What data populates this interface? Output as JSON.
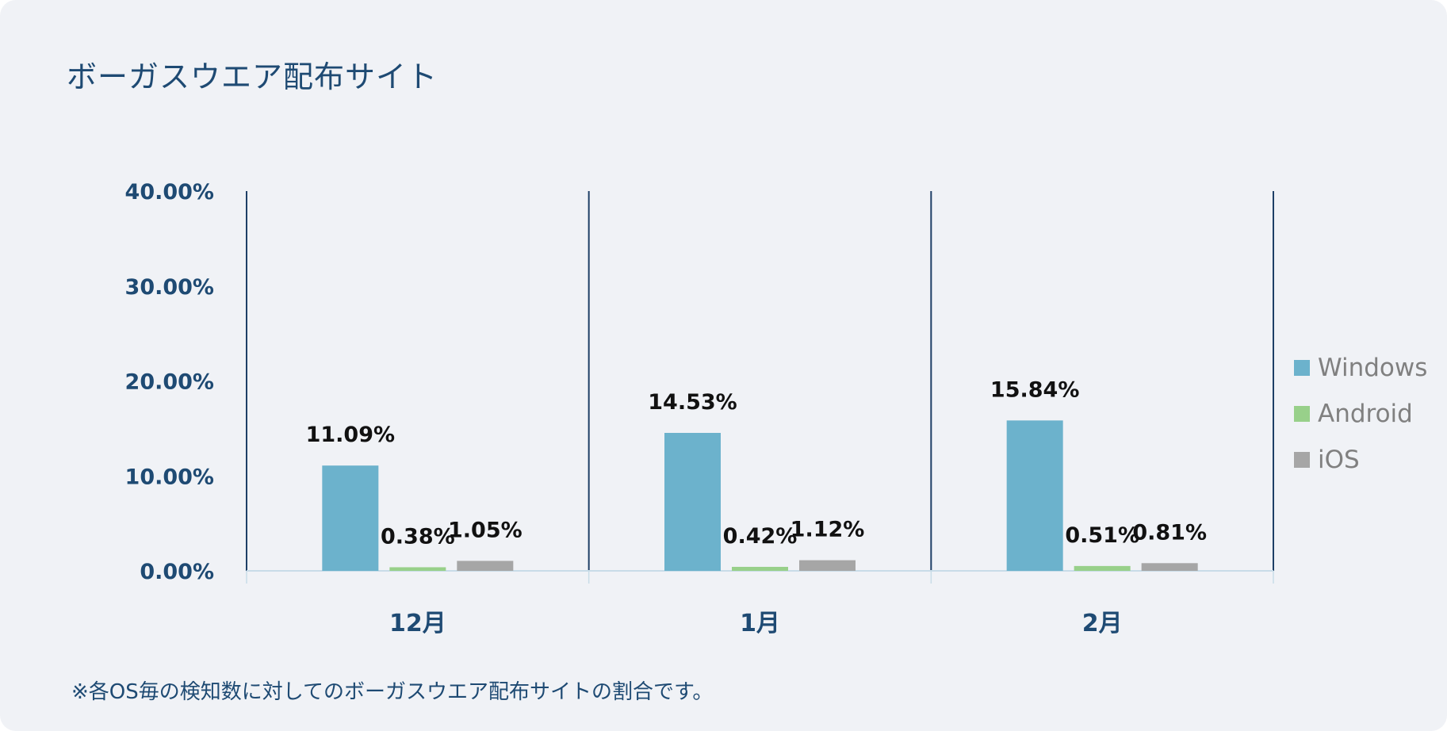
{
  "title": "ボーガスウエア配布サイト",
  "note": "※各OS毎の検知数に対してのボーガスウエア配布サイトの割合です。",
  "legend": [
    {
      "label": "Windows",
      "color": "#6cb2cc"
    },
    {
      "label": "Android",
      "color": "#98d08a"
    },
    {
      "label": "iOS",
      "color": "#a6a6a6"
    }
  ],
  "chart_data": {
    "type": "bar",
    "title": "ボーガスウエア配布サイト",
    "categories": [
      "12月",
      "1月",
      "2月"
    ],
    "series": [
      {
        "name": "Windows",
        "values": [
          11.09,
          14.53,
          15.84
        ],
        "labels": [
          "11.09%",
          "14.53%",
          "15.84%"
        ],
        "color": "#6cb2cc"
      },
      {
        "name": "Android",
        "values": [
          0.38,
          0.42,
          0.51
        ],
        "labels": [
          "0.38%",
          "0.42%",
          "0.51%"
        ],
        "color": "#98d08a"
      },
      {
        "name": "iOS",
        "values": [
          1.05,
          1.12,
          0.81
        ],
        "labels": [
          "1.05%",
          "1.12%",
          "0.81%"
        ],
        "color": "#a6a6a6"
      }
    ],
    "ylim": [
      0,
      40
    ],
    "yticks": [
      0,
      10,
      20,
      30,
      40
    ],
    "ytick_labels": [
      "0.00%",
      "10.00%",
      "20.00%",
      "30.00%",
      "40.00%"
    ],
    "grid": false,
    "legend_position": "right"
  }
}
